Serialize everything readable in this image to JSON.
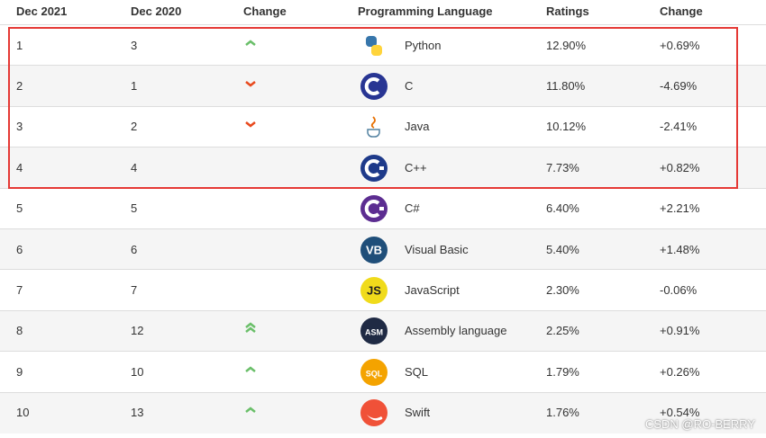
{
  "table": {
    "headers": [
      "Dec 2021",
      "Dec 2020",
      "Change",
      "Programming Language",
      "Ratings",
      "Change"
    ],
    "rows": [
      {
        "rank": "1",
        "prev": "3",
        "trend": "up",
        "language": "Python",
        "logo": "python",
        "logo_color": "#3776ab",
        "ratings": "12.90%",
        "change": "+0.69%"
      },
      {
        "rank": "2",
        "prev": "1",
        "trend": "down",
        "language": "C",
        "logo": "c",
        "logo_color": "#283593",
        "ratings": "11.80%",
        "change": "-4.69%"
      },
      {
        "rank": "3",
        "prev": "2",
        "trend": "down",
        "language": "Java",
        "logo": "java",
        "logo_color": "#e76f00",
        "ratings": "10.12%",
        "change": "-2.41%"
      },
      {
        "rank": "4",
        "prev": "4",
        "trend": "none",
        "language": "C++",
        "logo": "cpp",
        "logo_color": "#1e3a8a",
        "ratings": "7.73%",
        "change": "+0.82%"
      },
      {
        "rank": "5",
        "prev": "5",
        "trend": "none",
        "language": "C#",
        "logo": "csharp",
        "logo_color": "#5c2d91",
        "ratings": "6.40%",
        "change": "+2.21%"
      },
      {
        "rank": "6",
        "prev": "6",
        "trend": "none",
        "language": "Visual Basic",
        "logo": "text",
        "logo_text": "VB",
        "logo_color": "#1f4e79",
        "ratings": "5.40%",
        "change": "+1.48%"
      },
      {
        "rank": "7",
        "prev": "7",
        "trend": "none",
        "language": "JavaScript",
        "logo": "text",
        "logo_text": "JS",
        "logo_color": "#f0db1b",
        "ratings": "2.30%",
        "change": "-0.06%"
      },
      {
        "rank": "8",
        "prev": "12",
        "trend": "up2",
        "language": "Assembly language",
        "logo": "text",
        "logo_text": "ASM",
        "logo_color": "#1f2a44",
        "ratings": "2.25%",
        "change": "+0.91%"
      },
      {
        "rank": "9",
        "prev": "10",
        "trend": "up",
        "language": "SQL",
        "logo": "text",
        "logo_text": "SQL",
        "logo_color": "#f4a300",
        "ratings": "1.79%",
        "change": "+0.26%"
      },
      {
        "rank": "10",
        "prev": "13",
        "trend": "up",
        "language": "Swift",
        "logo": "swift",
        "logo_color": "#f05138",
        "ratings": "1.76%",
        "change": "+0.54%"
      }
    ]
  },
  "watermark": "CSDN @RO-BERRY"
}
